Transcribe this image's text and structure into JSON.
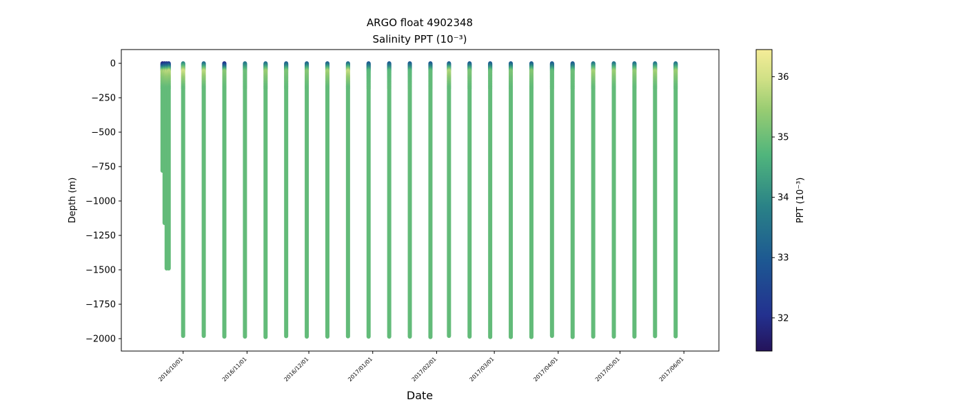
{
  "chart_data": {
    "type": "scatter",
    "title": "ARGO float 4902348",
    "subtitle": "Salinity PPT (10⁻³)",
    "xlabel": "Date",
    "ylabel": "Depth (m)",
    "x_range": [
      "2016-09-01",
      "2017-06-18"
    ],
    "y_range": [
      -2090,
      100
    ],
    "y_ticks": [
      0,
      -250,
      -500,
      -750,
      -1000,
      -1250,
      -1500,
      -1750,
      -2000
    ],
    "y_tick_labels": [
      "0",
      "−250",
      "−500",
      "−750",
      "−1000",
      "−1250",
      "−1500",
      "−1750",
      "−2000"
    ],
    "x_ticks": [
      "2016-10-01",
      "2016-11-01",
      "2016-12-01",
      "2017-01-01",
      "2017-02-01",
      "2017-03-01",
      "2017-04-01",
      "2017-05-01",
      "2017-06-01"
    ],
    "x_tick_labels": [
      "2016/10/01",
      "2016/11/01",
      "2016/12/01",
      "2017/01/01",
      "2017/02/01",
      "2017/03/01",
      "2017/04/01",
      "2017/05/01",
      "2017/06/01"
    ],
    "colormap": "viridis-like (navy → teal → green → pale yellow)",
    "colorbar": {
      "label": "PPT (10⁻³)",
      "range": [
        31.45,
        36.45
      ],
      "ticks": [
        32,
        33,
        34,
        35,
        36
      ],
      "tick_labels": [
        "32",
        "33",
        "34",
        "35",
        "36"
      ]
    },
    "grid": false,
    "profiles": [
      {
        "date": "2016-09-21",
        "max_depth": -780,
        "surface_salinity": 31.6,
        "subsurface_max": 35.6,
        "deep_salinity": 34.9
      },
      {
        "date": "2016-09-22",
        "max_depth": -1160,
        "surface_salinity": 31.8,
        "subsurface_max": 35.7,
        "deep_salinity": 34.9
      },
      {
        "date": "2016-09-23",
        "max_depth": -1490,
        "surface_salinity": 31.9,
        "subsurface_max": 35.8,
        "deep_salinity": 34.9
      },
      {
        "date": "2016-09-24",
        "max_depth": -1490,
        "surface_salinity": 32.0,
        "subsurface_max": 35.8,
        "deep_salinity": 34.9
      },
      {
        "date": "2016-10-01",
        "max_depth": -1980,
        "surface_salinity": 33.8,
        "subsurface_max": 36.0,
        "deep_salinity": 34.9
      },
      {
        "date": "2016-10-11",
        "max_depth": -1980,
        "surface_salinity": 33.2,
        "subsurface_max": 35.8,
        "deep_salinity": 34.9
      },
      {
        "date": "2016-10-21",
        "max_depth": -1985,
        "surface_salinity": 31.8,
        "subsurface_max": 35.3,
        "deep_salinity": 34.9
      },
      {
        "date": "2016-10-31",
        "max_depth": -1985,
        "surface_salinity": 33.5,
        "subsurface_max": 35.0,
        "deep_salinity": 34.9
      },
      {
        "date": "2016-11-10",
        "max_depth": -1988,
        "surface_salinity": 33.3,
        "subsurface_max": 35.5,
        "deep_salinity": 34.9
      },
      {
        "date": "2016-11-20",
        "max_depth": -1982,
        "surface_salinity": 33.0,
        "subsurface_max": 35.2,
        "deep_salinity": 34.9
      },
      {
        "date": "2016-11-30",
        "max_depth": -1985,
        "surface_salinity": 33.1,
        "subsurface_max": 35.3,
        "deep_salinity": 34.9
      },
      {
        "date": "2016-12-10",
        "max_depth": -1985,
        "surface_salinity": 33.0,
        "subsurface_max": 35.6,
        "deep_salinity": 34.9
      },
      {
        "date": "2016-12-20",
        "max_depth": -1983,
        "surface_salinity": 33.2,
        "subsurface_max": 35.9,
        "deep_salinity": 34.9
      },
      {
        "date": "2016-12-30",
        "max_depth": -1985,
        "surface_salinity": 32.9,
        "subsurface_max": 34.8,
        "deep_salinity": 34.9
      },
      {
        "date": "2017-01-09",
        "max_depth": -1985,
        "surface_salinity": 32.9,
        "subsurface_max": 34.8,
        "deep_salinity": 34.9
      },
      {
        "date": "2017-01-19",
        "max_depth": -1985,
        "surface_salinity": 32.9,
        "subsurface_max": 34.8,
        "deep_salinity": 34.9
      },
      {
        "date": "2017-01-29",
        "max_depth": -1988,
        "surface_salinity": 32.8,
        "subsurface_max": 34.9,
        "deep_salinity": 34.9
      },
      {
        "date": "2017-02-07",
        "max_depth": -1980,
        "surface_salinity": 32.9,
        "subsurface_max": 35.7,
        "deep_salinity": 34.9
      },
      {
        "date": "2017-02-17",
        "max_depth": -1985,
        "surface_salinity": 32.9,
        "subsurface_max": 35.2,
        "deep_salinity": 34.9
      },
      {
        "date": "2017-02-27",
        "max_depth": -1988,
        "surface_salinity": 32.9,
        "subsurface_max": 35.0,
        "deep_salinity": 34.9
      },
      {
        "date": "2017-03-09",
        "max_depth": -1988,
        "surface_salinity": 32.9,
        "subsurface_max": 35.2,
        "deep_salinity": 34.9
      },
      {
        "date": "2017-03-19",
        "max_depth": -1988,
        "surface_salinity": 32.9,
        "subsurface_max": 35.3,
        "deep_salinity": 34.9
      },
      {
        "date": "2017-03-29",
        "max_depth": -1980,
        "surface_salinity": 32.9,
        "subsurface_max": 34.9,
        "deep_salinity": 34.9
      },
      {
        "date": "2017-04-08",
        "max_depth": -1988,
        "surface_salinity": 32.9,
        "subsurface_max": 35.0,
        "deep_salinity": 34.9
      },
      {
        "date": "2017-04-18",
        "max_depth": -1985,
        "surface_salinity": 33.4,
        "subsurface_max": 35.6,
        "deep_salinity": 34.9
      },
      {
        "date": "2017-04-28",
        "max_depth": -1985,
        "surface_salinity": 33.4,
        "subsurface_max": 35.5,
        "deep_salinity": 34.9
      },
      {
        "date": "2017-05-08",
        "max_depth": -1985,
        "surface_salinity": 33.3,
        "subsurface_max": 35.4,
        "deep_salinity": 34.9
      },
      {
        "date": "2017-05-18",
        "max_depth": -1982,
        "surface_salinity": 33.4,
        "subsurface_max": 35.6,
        "deep_salinity": 34.9
      },
      {
        "date": "2017-05-28",
        "max_depth": -1983,
        "surface_salinity": 33.4,
        "subsurface_max": 35.5,
        "deep_salinity": 34.9
      }
    ]
  }
}
